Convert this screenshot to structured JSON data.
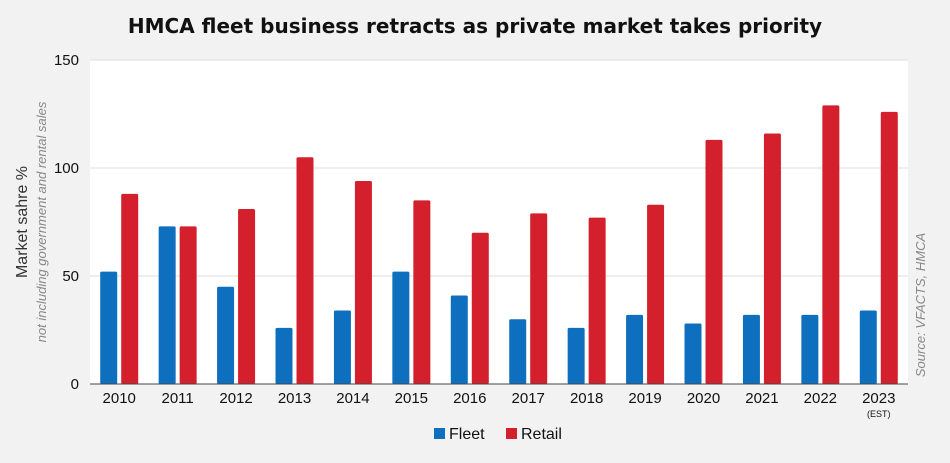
{
  "chart_data": {
    "type": "bar",
    "title": "HMCA fleet business retracts as private market takes priority",
    "ylabel": "Market sahre %",
    "ylabel_sub": "not including government and rental sales",
    "source": "Source: VFACTS, HMCA",
    "categories": [
      "2010",
      "2011",
      "2012",
      "2013",
      "2014",
      "2015",
      "2016",
      "2017",
      "2018",
      "2019",
      "2020",
      "2021",
      "2022",
      "2023"
    ],
    "category_notes": {
      "2023": "(EST)"
    },
    "ylim": [
      0,
      150
    ],
    "yticks": [
      0,
      50,
      100,
      150
    ],
    "grid": true,
    "legend_position": "bottom",
    "series": [
      {
        "name": "Fleet",
        "color": "#0e6fbf",
        "values": [
          52,
          73,
          45,
          26,
          34,
          52,
          41,
          30,
          26,
          32,
          28,
          32,
          32,
          34
        ]
      },
      {
        "name": "Retail",
        "color": "#d4202c",
        "values": [
          88,
          73,
          81,
          105,
          94,
          85,
          70,
          79,
          77,
          83,
          113,
          116,
          129,
          126
        ]
      }
    ]
  }
}
